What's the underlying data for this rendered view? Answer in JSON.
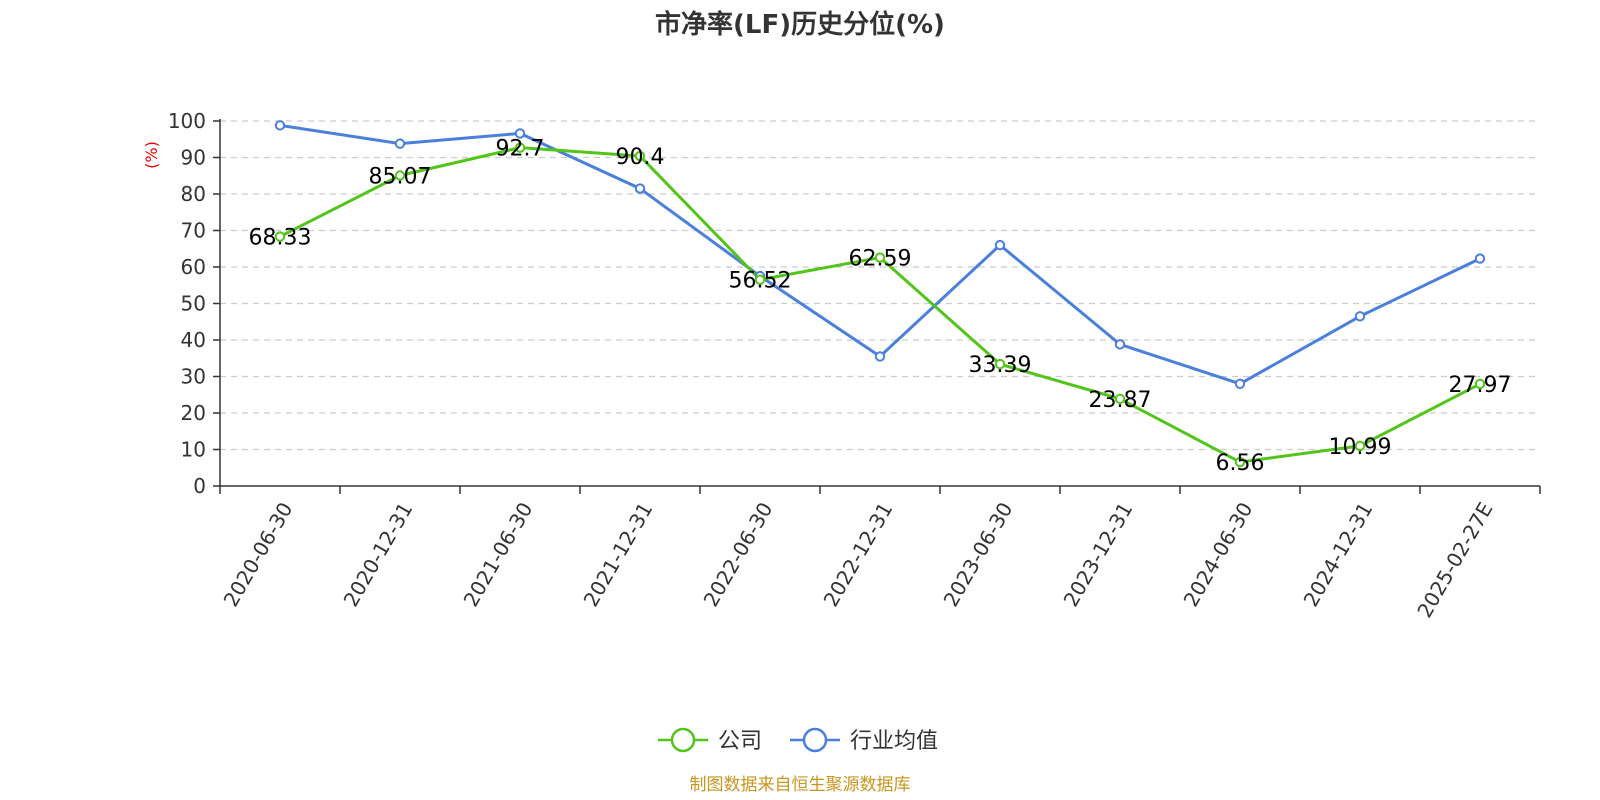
{
  "chart_data": {
    "type": "line",
    "title": "市净率(LF)历史分位(%)",
    "ylabel": "(%)",
    "ylim": [
      0,
      100
    ],
    "yticks": [
      0,
      10,
      20,
      30,
      40,
      50,
      60,
      70,
      80,
      90,
      100
    ],
    "grid": true,
    "legend_position": "bottom",
    "categories": [
      "2020-06-30",
      "2020-12-31",
      "2021-06-30",
      "2021-12-31",
      "2022-06-30",
      "2022-12-31",
      "2023-06-30",
      "2023-12-31",
      "2024-06-30",
      "2024-12-31",
      "2025-02-27E"
    ],
    "series": [
      {
        "name": "公司",
        "color": "#52c41a",
        "values": [
          68.33,
          85.07,
          92.7,
          90.4,
          56.52,
          62.59,
          33.39,
          23.87,
          6.56,
          10.99,
          27.97
        ],
        "labels": [
          "68.33",
          "85.07",
          "92.7",
          "90.4",
          "56.52",
          "62.59",
          "33.39",
          "23.87",
          "6.56",
          "10.99",
          "27.97"
        ]
      },
      {
        "name": "行业均值",
        "color": "#4a7fdb",
        "values": [
          98.8,
          93.8,
          96.6,
          81.5,
          57.5,
          35.5,
          66,
          38.8,
          28,
          46.5,
          62.3
        ]
      }
    ]
  },
  "footer": {
    "source": "制图数据来自恒生聚源数据库"
  }
}
